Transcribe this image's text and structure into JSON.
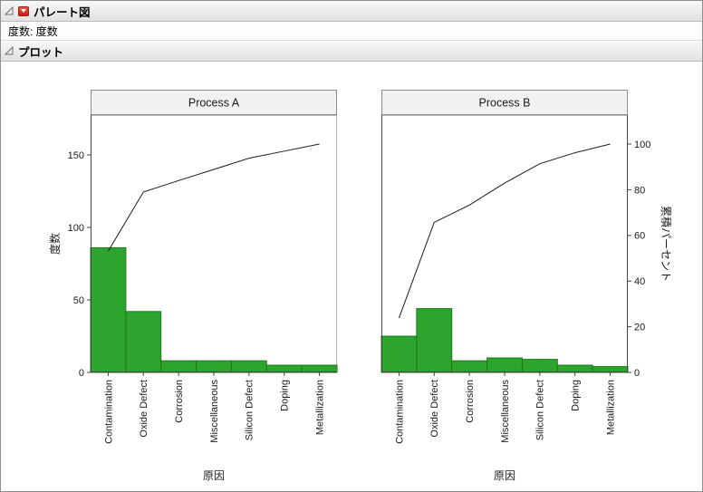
{
  "outline": {
    "title": "パレート図",
    "frequency_row": "度数: 度数",
    "plot_header": "プロット"
  },
  "icons": {
    "disclosure": "disclosure-triangle",
    "red_menu": "red-triangle-menu"
  },
  "colors": {
    "bar_fill": "#2DA42D",
    "bar_border": "#1B7A1B",
    "cumulative_line": "#1a1a1a",
    "axis_line": "#444444",
    "frame_border": "#b9b9b9",
    "title_box_bg": "#f1f1f1",
    "title_box_border": "#8d8d8d"
  },
  "chart_data": [
    {
      "type": "bar",
      "overlay": "cumulative-line",
      "title": "Process A",
      "categories": [
        "Contamination",
        "Oxide Defect",
        "Corrosion",
        "Miscellaneous",
        "Silicon Defect",
        "Doping",
        "Metallization"
      ],
      "values": [
        86,
        42,
        8,
        8,
        8,
        5,
        5
      ],
      "cumulative_percent": [
        53.1,
        79.0,
        84.0,
        88.9,
        93.8,
        96.9,
        100
      ],
      "xlabel": "原因",
      "ylabel_left": "度数",
      "ylabel_right": "累積パーセント",
      "y_left_ticks": [
        0,
        50,
        100,
        150
      ],
      "y_right_ticks": [
        0,
        20,
        40,
        60,
        80,
        100
      ],
      "y_left_max": 177.5,
      "y_right_max": 112.7,
      "grid": false,
      "legend": "none"
    },
    {
      "type": "bar",
      "overlay": "cumulative-line",
      "title": "Process B",
      "categories": [
        "Contamination",
        "Oxide Defect",
        "Corrosion",
        "Miscellaneous",
        "Silicon Defect",
        "Doping",
        "Metallization"
      ],
      "values": [
        25,
        44,
        8,
        10,
        9,
        5,
        4
      ],
      "cumulative_percent": [
        23.8,
        65.7,
        73.3,
        82.9,
        91.4,
        96.2,
        100
      ],
      "xlabel": "原因",
      "ylabel_left": "度数",
      "ylabel_right": "累積パーセント",
      "y_left_ticks": [
        0,
        50,
        100,
        150
      ],
      "y_right_ticks": [
        0,
        20,
        40,
        60,
        80,
        100
      ],
      "y_left_max": 177.5,
      "y_right_max": 112.7,
      "grid": false,
      "legend": "none"
    }
  ]
}
